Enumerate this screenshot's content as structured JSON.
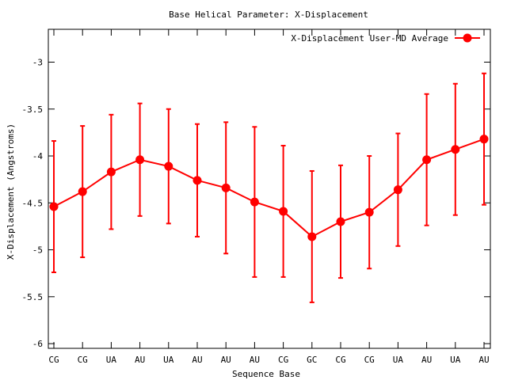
{
  "chart_data": {
    "type": "line",
    "title": "Base  Helical Parameter: X-Displacement",
    "xlabel": "Sequence Base",
    "ylabel": "X-Displacement (Angstroms)",
    "categories": [
      "CG",
      "CG",
      "UA",
      "AU",
      "UA",
      "AU",
      "AU",
      "AU",
      "CG",
      "GC",
      "CG",
      "CG",
      "UA",
      "AU",
      "UA",
      "AU"
    ],
    "ylim": [
      -6.05,
      -2.65
    ],
    "yticks": [
      -6,
      -5.5,
      -5,
      -4.5,
      -4,
      -3.5,
      -3
    ],
    "ytick_labels": [
      "-6",
      "-5.5",
      "-5",
      "-4.5",
      "-4",
      "-3.5",
      "-3"
    ],
    "legend_position": "top-right",
    "series": [
      {
        "name": "X-Displacement User-MD Average",
        "color": "#ff0000",
        "marker": "circle",
        "values": [
          -4.54,
          -4.38,
          -4.17,
          -4.04,
          -4.11,
          -4.26,
          -4.34,
          -4.49,
          -4.59,
          -4.86,
          -4.7,
          -4.6,
          -4.36,
          -4.04,
          -3.93,
          -3.82
        ],
        "errors": [
          0.7,
          0.7,
          0.61,
          0.6,
          0.61,
          0.6,
          0.7,
          0.8,
          0.7,
          0.7,
          0.6,
          0.6,
          0.6,
          0.7,
          0.7,
          0.7
        ]
      }
    ]
  }
}
